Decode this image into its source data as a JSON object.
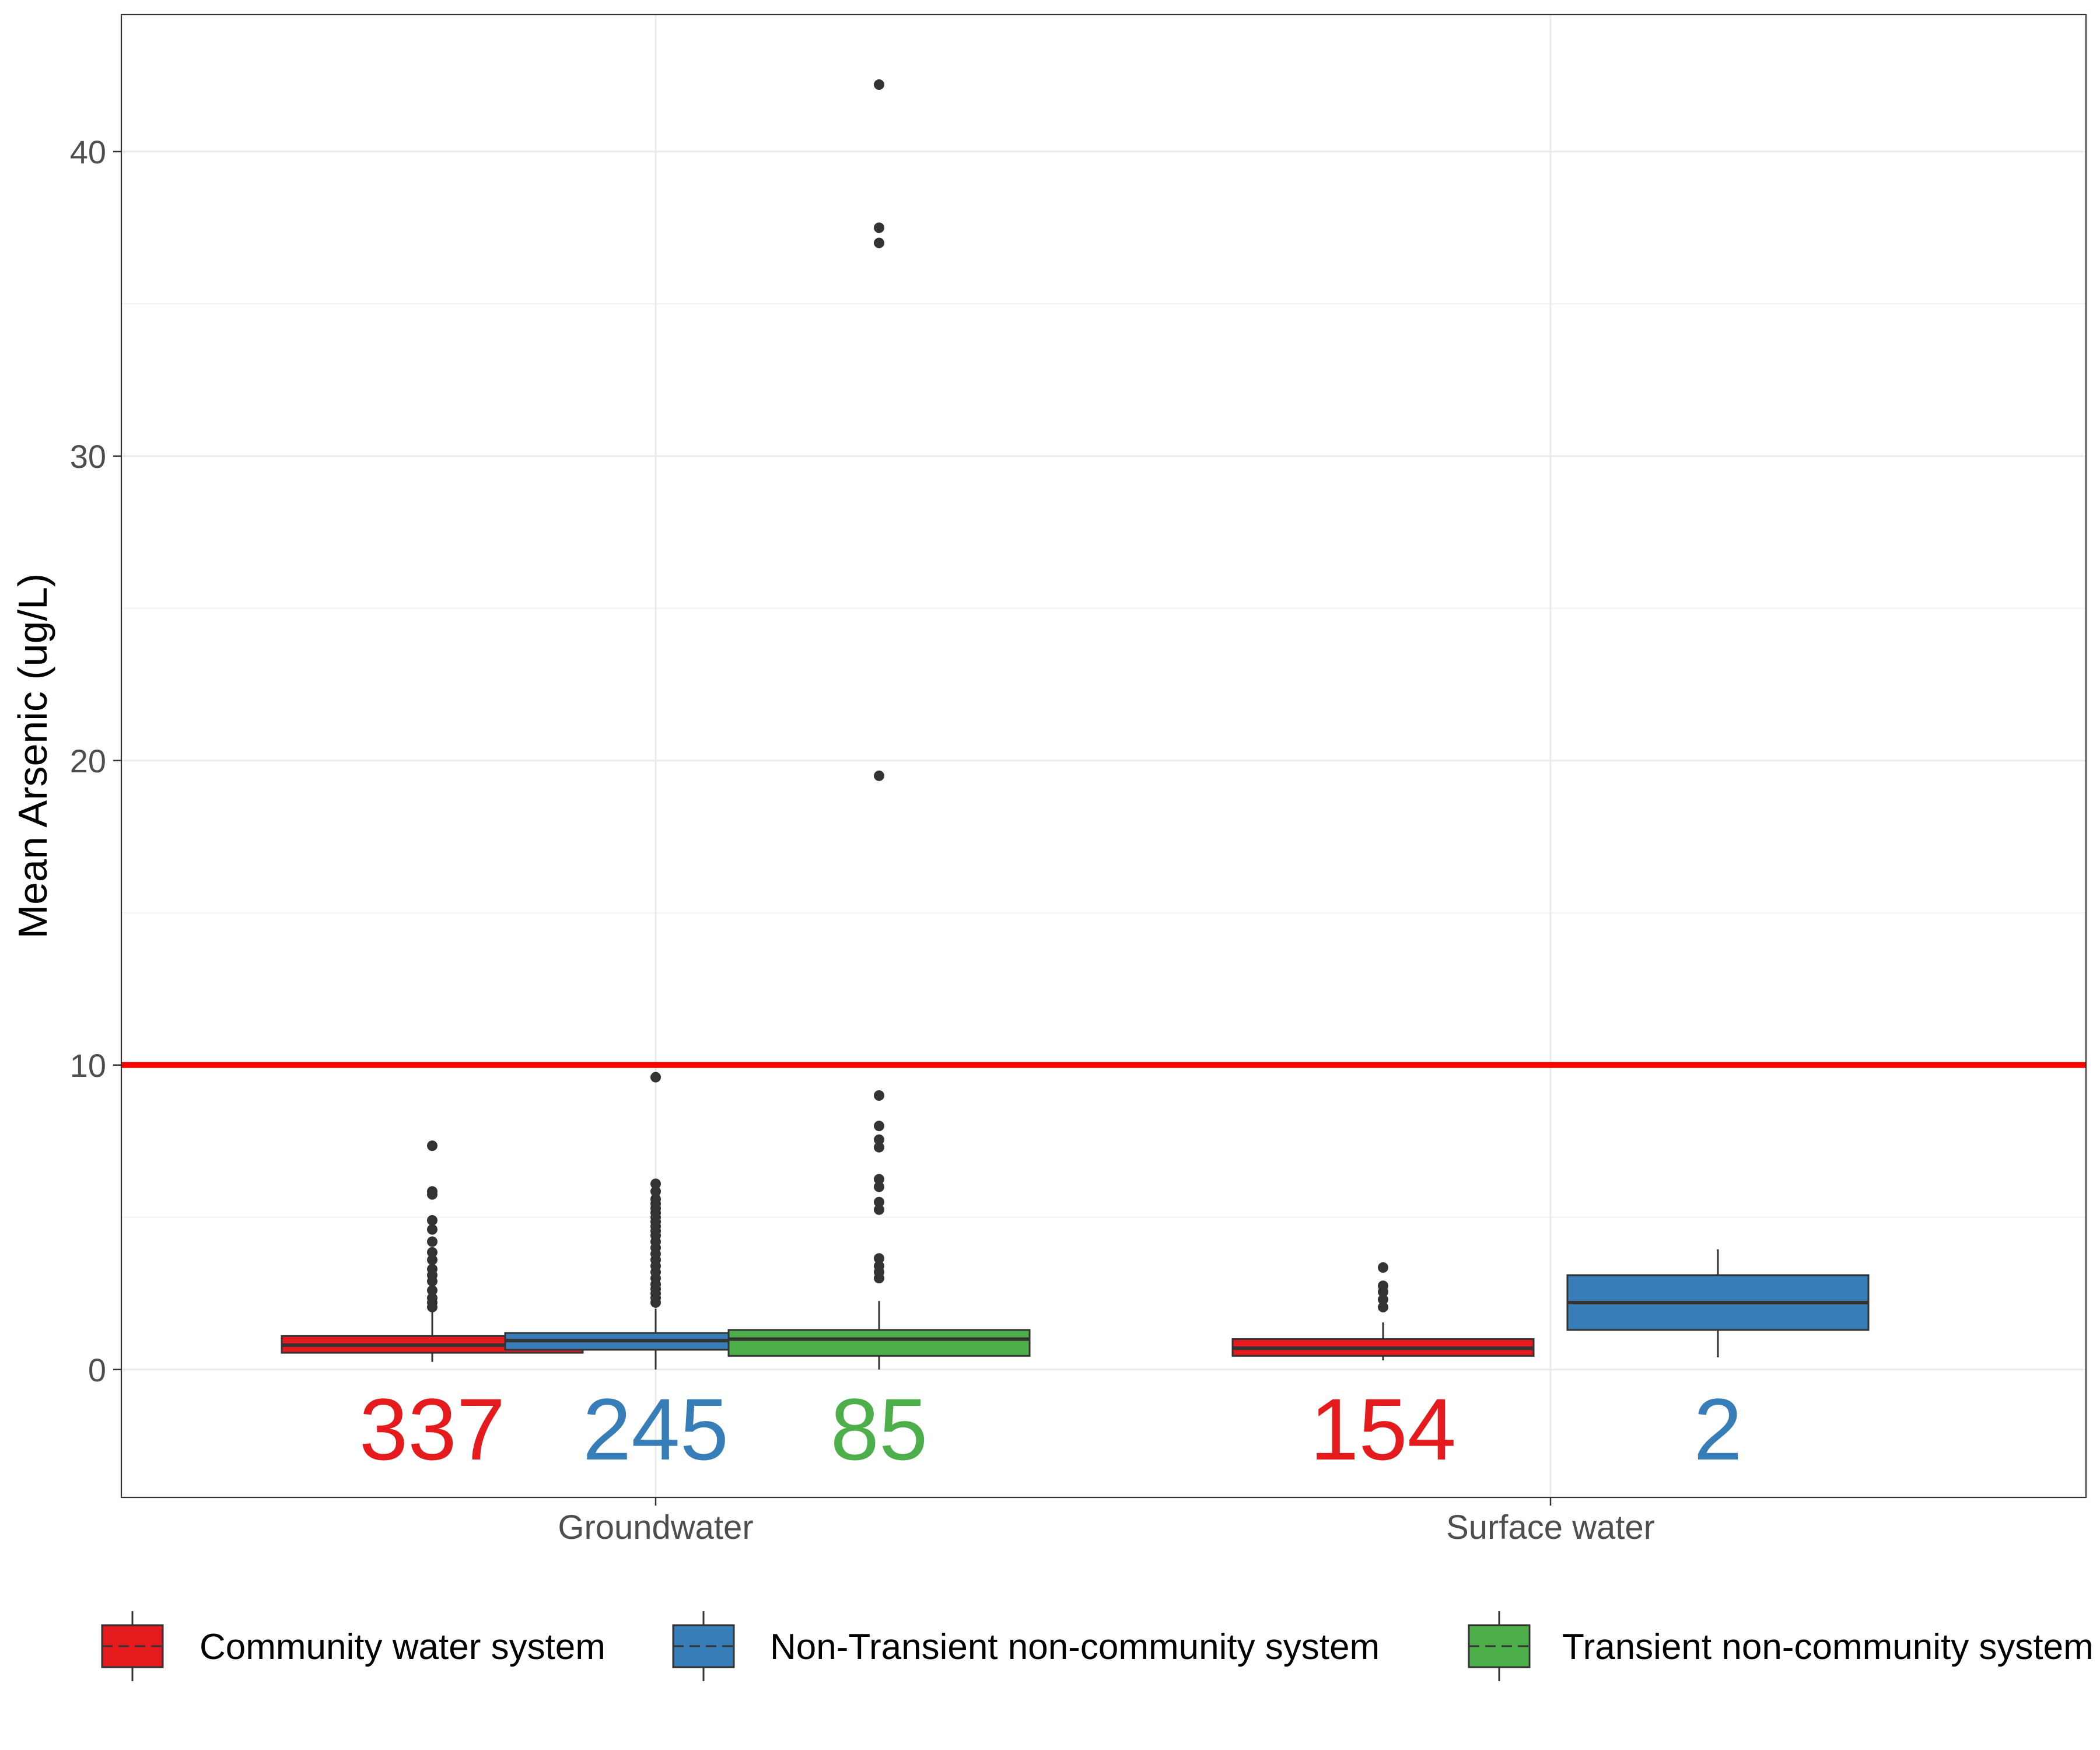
{
  "chart_data": {
    "type": "boxplot",
    "title": "",
    "xlabel": "",
    "ylabel": "Mean Arsenic (ug/L)",
    "ylim": [
      -4.2,
      44.5
    ],
    "yticks": [
      0,
      10,
      20,
      30,
      40
    ],
    "grid": true,
    "legend_position": "bottom",
    "categories": [
      "Groundwater",
      "Surface water"
    ],
    "reference_line": {
      "y": 10,
      "color": "#FF0000"
    },
    "series": [
      {
        "name": "Community water system",
        "color": "#E41A1C",
        "text_color": "#E41A1C"
      },
      {
        "name": "Non-Transient non-community system",
        "color": "#377EB8",
        "text_color": "#377EB8"
      },
      {
        "name": "Transient non-community system",
        "color": "#4DAF4A",
        "text_color": "#4DAF4A"
      }
    ],
    "boxes": [
      {
        "category": "Groundwater",
        "series": 0,
        "count_label": "337",
        "whisker_low": 0.25,
        "q1": 0.55,
        "median": 0.8,
        "q3": 1.1,
        "whisker_high": 1.9,
        "outliers": [
          2.05,
          2.2,
          2.35,
          2.6,
          2.9,
          3.1,
          3.3,
          3.6,
          3.85,
          4.2,
          4.6,
          4.9,
          5.75,
          5.85,
          7.35
        ]
      },
      {
        "category": "Groundwater",
        "series": 1,
        "count_label": "245",
        "whisker_low": 0.0,
        "q1": 0.65,
        "median": 0.95,
        "q3": 1.2,
        "whisker_high": 2.0,
        "outliers": [
          2.2,
          2.35,
          2.5,
          2.65,
          2.8,
          3.0,
          3.2,
          3.4,
          3.6,
          3.8,
          4.0,
          4.2,
          4.4,
          4.55,
          4.7,
          4.85,
          5.0,
          5.15,
          5.3,
          5.45,
          5.6,
          5.85,
          6.1,
          9.6
        ]
      },
      {
        "category": "Groundwater",
        "series": 2,
        "count_label": "85",
        "whisker_low": 0.0,
        "q1": 0.45,
        "median": 1.0,
        "q3": 1.3,
        "whisker_high": 2.25,
        "outliers": [
          3.0,
          3.2,
          3.4,
          3.65,
          5.25,
          5.5,
          6.0,
          6.25,
          7.3,
          7.55,
          8.0,
          9.0,
          19.5,
          37.0,
          37.5,
          42.2
        ]
      },
      {
        "category": "Surface water",
        "series": 0,
        "count_label": "154",
        "whisker_low": 0.3,
        "q1": 0.45,
        "median": 0.7,
        "q3": 1.0,
        "whisker_high": 1.55,
        "outliers": [
          2.05,
          2.3,
          2.55,
          2.75,
          3.35
        ]
      },
      {
        "category": "Surface water",
        "series": 1,
        "count_label": "2",
        "whisker_low": 0.4,
        "q1": 1.3,
        "median": 2.2,
        "q3": 3.1,
        "whisker_high": 3.95,
        "outliers": []
      }
    ]
  }
}
